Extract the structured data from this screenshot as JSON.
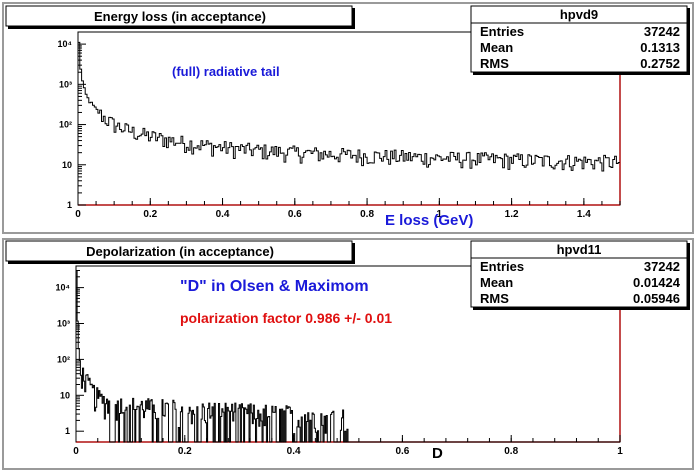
{
  "chart_data": [
    {
      "type": "histogram",
      "title": "Energy loss (in acceptance)",
      "xlabel": "E  loss  (GeV)",
      "ylabel": "",
      "log_y": true,
      "xlim": [
        0,
        1.5
      ],
      "ylim": [
        1,
        20000
      ],
      "x_ticks": [
        "0",
        "0.2",
        "0.4",
        "0.6",
        "0.8",
        "1",
        "1.2",
        "1.4"
      ],
      "y_ticks": [
        "1",
        "10",
        "10²",
        "10³",
        "10⁴"
      ],
      "annotations": [
        {
          "text": "(full)  radiative tail",
          "color": "#1a1ad9"
        }
      ],
      "stats": {
        "name": "hpvd9",
        "entries": "37242",
        "mean": "0.1313",
        "rms": "0.2752"
      },
      "series": [
        {
          "color": "#000000",
          "shape": "steep peak ~11000 at x=0, ~1000 at x=0.03, ~100 at x=0.18, ~20 at x=0.5, ~15 at x=1.0, ~12 at x=1.45 with fluctuations"
        }
      ]
    },
    {
      "type": "histogram",
      "title": "Depolarization (in acceptance)",
      "xlabel": "D",
      "ylabel": "",
      "log_y": true,
      "xlim": [
        0,
        1
      ],
      "ylim": [
        0.5,
        40000
      ],
      "x_ticks": [
        "0",
        "0.2",
        "0.4",
        "0.6",
        "0.8",
        "1"
      ],
      "y_ticks": [
        "1",
        "10",
        "10²",
        "10³",
        "10⁴"
      ],
      "annotations": [
        {
          "text": "\"D\"  in Olsen &  Maximom",
          "color": "#1a1ad9"
        },
        {
          "text": "polarization factor 0.986 +/-  0.01",
          "color": "#e01010"
        }
      ],
      "stats": {
        "name": "hpvd11",
        "entries": "37242",
        "mean": "0.01424",
        "rms": "0.05946"
      },
      "series": [
        {
          "color": "#000000",
          "shape": "peak ~30000 at D=0, ~100 at D=0.01, ~10 by D=0.04, noisy 1-10 level until D=0.5, empty afterwards"
        }
      ]
    }
  ],
  "labels": {
    "entries": "Entries",
    "mean": "Mean",
    "rms": "RMS"
  }
}
